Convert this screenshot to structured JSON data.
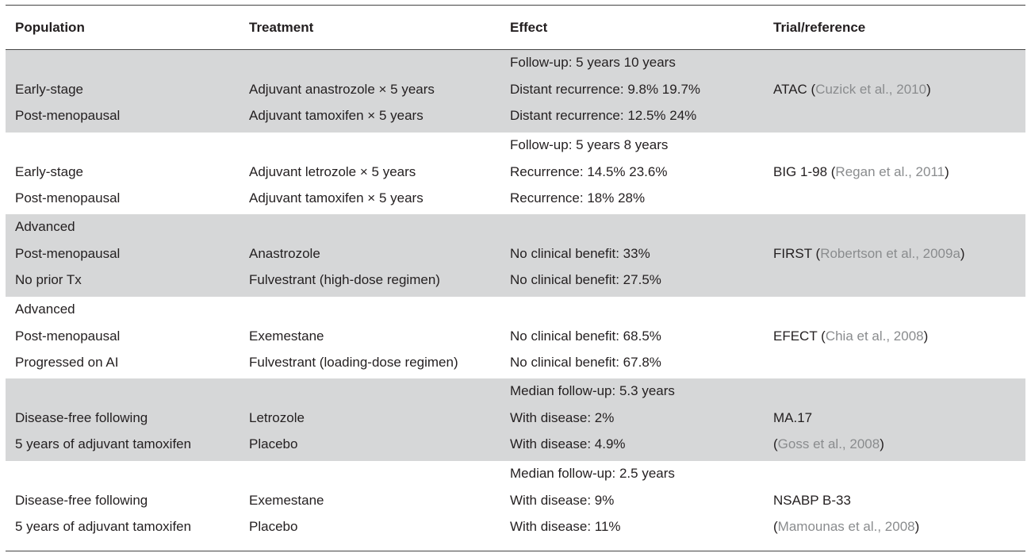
{
  "headers": [
    "Population",
    "Treatment",
    "Effect",
    "Trial/reference"
  ],
  "rows": [
    {
      "shaded": true,
      "effect_top": "Follow-up: 5 years 10 years",
      "pop": [
        "",
        "Early-stage",
        "Post-menopausal"
      ],
      "treat": [
        "",
        "Adjuvant anastrozole × 5 years",
        "Adjuvant tamoxifen × 5 years"
      ],
      "effect": [
        "Follow-up: 5 years 10 years",
        "Distant recurrence: 9.8% 19.7%",
        "Distant recurrence: 12.5% 24%"
      ],
      "trial": "ATAC (",
      "ref": "Cuzick et al., 2010",
      "trial_end": ")"
    },
    {
      "shaded": false,
      "pop": [
        "",
        "Early-stage",
        "Post-menopausal"
      ],
      "treat": [
        "",
        "Adjuvant letrozole × 5 years",
        "Adjuvant tamoxifen × 5 years"
      ],
      "effect": [
        "Follow-up: 5 years 8 years",
        "Recurrence: 14.5% 23.6%",
        "Recurrence: 18% 28%"
      ],
      "trial": "BIG 1-98 (",
      "ref": "Regan et al., 2011",
      "trial_end": ")"
    },
    {
      "shaded": true,
      "pop": [
        "Advanced",
        "Post-menopausal",
        "No prior Tx"
      ],
      "treat": [
        "",
        "Anastrozole",
        "Fulvestrant (high-dose regimen)"
      ],
      "effect": [
        "",
        "No clinical benefit: 33%",
        "No clinical benefit: 27.5%"
      ],
      "trial": "FIRST (",
      "ref": "Robertson et al., 2009a",
      "trial_end": ")"
    },
    {
      "shaded": false,
      "pop": [
        "Advanced",
        "Post-menopausal",
        "Progressed on AI"
      ],
      "treat": [
        "",
        "Exemestane",
        "Fulvestrant (loading-dose regimen)"
      ],
      "effect": [
        "",
        "No clinical benefit: 68.5%",
        "No clinical benefit: 67.8%"
      ],
      "trial": "EFECT (",
      "ref": "Chia et al., 2008",
      "trial_end": ")"
    },
    {
      "shaded": true,
      "pop": [
        "",
        "Disease-free following",
        "5 years of adjuvant tamoxifen"
      ],
      "treat": [
        "",
        "Letrozole",
        "Placebo"
      ],
      "effect": [
        "Median follow-up: 5.3 years",
        "With disease: 2%",
        "With disease: 4.9%"
      ],
      "trial2": "MA.17",
      "ref_open": "(",
      "ref": "Goss et al., 2008",
      "trial_end": ")"
    },
    {
      "shaded": false,
      "pop": [
        "",
        "Disease-free following",
        "5 years of adjuvant tamoxifen"
      ],
      "treat": [
        "",
        "Exemestane",
        "Placebo"
      ],
      "effect": [
        "Median follow-up: 2.5 years",
        "With disease: 9%",
        "With disease: 11%"
      ],
      "trial2": "NSABP B-33",
      "ref_open": "(",
      "ref": "Mamounas et al., 2008",
      "trial_end": ")"
    }
  ]
}
